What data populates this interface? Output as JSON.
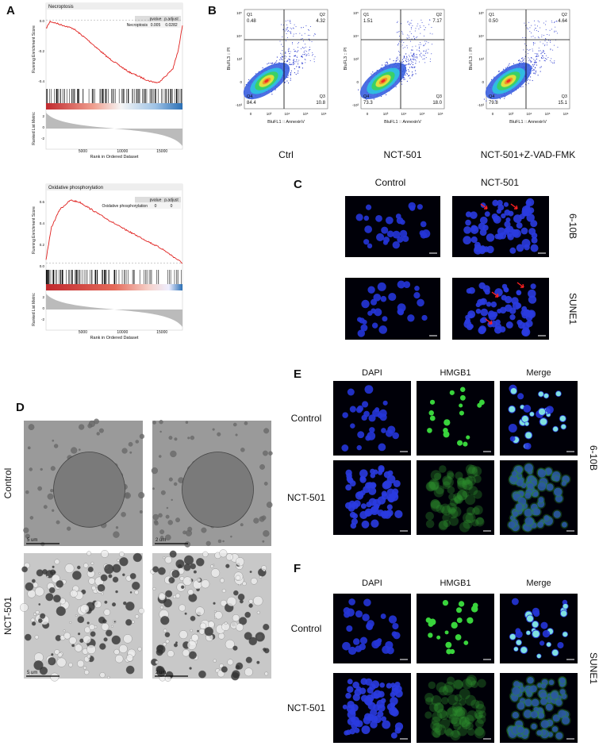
{
  "panel_labels": {
    "a": "A",
    "b": "B",
    "c": "C",
    "d": "D",
    "e": "E",
    "f": "F"
  },
  "gsea": [
    {
      "title": "Necroptosis",
      "table_header": [
        "pvalue",
        "p.adjust"
      ],
      "set": "Necroptosis",
      "pvalue": "0.005",
      "p_adjust": "0.0282",
      "es_axis": "Running Enrichment Score",
      "es_ticks": [
        "0.0",
        "-0.2",
        "-0.4"
      ],
      "metric_axis": "Ranked List Metric",
      "metric_ticks": [
        "2",
        "0",
        "-2"
      ],
      "x_axis": "Rank in Ordered Dataset",
      "xticks": [
        "5000",
        "10000",
        "15000"
      ]
    },
    {
      "title": "Oxidative phosphorylation",
      "table_header": [
        "pvalue",
        "p.adjust"
      ],
      "set": "Oxidative phosphorylation",
      "pvalue": "0",
      "p_adjust": "0",
      "es_axis": "Running Enrichment Score",
      "es_ticks": [
        "0.6",
        "0.4",
        "0.2",
        "0.0"
      ],
      "metric_axis": "Ranked List Metric",
      "metric_ticks": [
        "2",
        "0",
        "-2"
      ],
      "x_axis": "Rank in Ordered Dataset",
      "xticks": [
        "5000",
        "10000",
        "15000"
      ]
    }
  ],
  "flow": {
    "x_axis": "BluFL1 :: AnnexinV",
    "y_axis": "BluFL3 :: PI",
    "xticks": [
      "0",
      "10³",
      "10⁴",
      "10⁵",
      "10⁶"
    ],
    "yticks": [
      "10⁵",
      "10⁴",
      "10³",
      "0",
      "-10³"
    ],
    "samples": [
      {
        "name": "Ctrl",
        "quadrants": [
          {
            "label": "Q1",
            "value": "0.48"
          },
          {
            "label": "Q2",
            "value": "4.32"
          },
          {
            "label": "Q3",
            "value": "10.8"
          },
          {
            "label": "Q4",
            "value": "84.4"
          }
        ]
      },
      {
        "name": "NCT-501",
        "quadrants": [
          {
            "label": "Q1",
            "value": "1.51"
          },
          {
            "label": "Q2",
            "value": "7.17"
          },
          {
            "label": "Q3",
            "value": "18.0"
          },
          {
            "label": "Q4",
            "value": "73.3"
          }
        ]
      },
      {
        "name": "NCT-501+Z-VAD-FMK",
        "quadrants": [
          {
            "label": "Q1",
            "value": "0.50"
          },
          {
            "label": "Q2",
            "value": "4.64"
          },
          {
            "label": "Q3",
            "value": "15.1"
          },
          {
            "label": "Q4",
            "value": "79.8"
          }
        ]
      }
    ]
  },
  "panel_c": {
    "columns": [
      "Control",
      "NCT-501"
    ],
    "rows": [
      "6-10B",
      "SUNE1"
    ]
  },
  "panel_d": {
    "rows": [
      "Control",
      "NCT-501"
    ],
    "scale_bars": [
      [
        "5 um",
        "2 um"
      ],
      [
        "5 um",
        "2 um"
      ]
    ]
  },
  "panel_e": {
    "columns": [
      "DAPI",
      "HMGB1",
      "Merge"
    ],
    "rows": [
      "Control",
      "NCT-501"
    ],
    "cell_line": "6-10B"
  },
  "panel_f": {
    "columns": [
      "DAPI",
      "HMGB1",
      "Merge"
    ],
    "rows": [
      "Control",
      "NCT-501"
    ],
    "cell_line": "SUNE1"
  }
}
